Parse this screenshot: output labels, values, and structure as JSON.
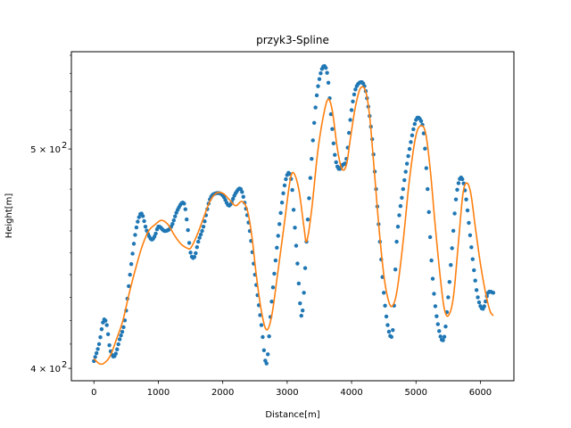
{
  "chart_data": {
    "type": "scatter",
    "title": "przyk3-Spline",
    "xlabel": "Distance[m]",
    "ylabel": "Height[m]",
    "xlim": [
      -350,
      6520
    ],
    "ylim": [
      395,
      552
    ],
    "yscale": "log",
    "grid": false,
    "legend": "none",
    "x_ticks": [
      0,
      1000,
      2000,
      3000,
      4000,
      5000,
      6000
    ],
    "x_tick_labels": [
      "0",
      "1000",
      "2000",
      "3000",
      "4000",
      "5000",
      "6000"
    ],
    "y_major_ticks": [
      400,
      500
    ],
    "y_major_tick_labels": [
      "4 × 10",
      "5 × 10"
    ],
    "y_tick_exponent": "2",
    "y_minor_ticks": [
      410,
      420,
      430,
      440,
      450,
      460,
      470,
      480,
      490,
      510,
      520,
      530,
      540,
      550
    ],
    "series": [
      {
        "kind": "points",
        "color": "#1f77b4",
        "anchors": {
          "x": [
            0,
            80,
            150,
            200,
            250,
            320,
            400,
            480,
            560,
            650,
            720,
            760,
            800,
            850,
            900,
            950,
            1000,
            1100,
            1200,
            1300,
            1400,
            1450,
            1500,
            1560,
            1620,
            1700,
            1800,
            1900,
            2000,
            2100,
            2200,
            2280,
            2350,
            2420,
            2500,
            2600,
            2680,
            2750,
            2850,
            2950,
            3020,
            3070,
            3100,
            3160,
            3220,
            3260,
            3300,
            3380,
            3450,
            3520,
            3580,
            3630,
            3680,
            3740,
            3800,
            3860,
            3920,
            3980,
            4050,
            4130,
            4200,
            4260,
            4320,
            4380,
            4440,
            4500,
            4560,
            4620,
            4650,
            4700,
            4800,
            4900,
            5000,
            5070,
            5120,
            5180,
            5250,
            5330,
            5430,
            5500,
            5560,
            5620,
            5680,
            5730,
            5780,
            5840,
            5900,
            5960,
            6040,
            6120,
            6200
          ],
          "y": [
            403,
            410,
            420,
            418,
            408,
            405,
            412,
            420,
            440,
            460,
            468,
            467,
            462,
            458,
            456,
            458,
            462,
            460,
            462,
            470,
            473,
            463,
            450,
            448,
            455,
            462,
            475,
            478,
            477,
            472,
            478,
            480,
            472,
            460,
            440,
            418,
            402,
            425,
            455,
            480,
            488,
            483,
            470,
            445,
            422,
            432,
            455,
            495,
            525,
            540,
            544,
            538,
            518,
            497,
            490,
            492,
            495,
            515,
            530,
            535,
            533,
            522,
            505,
            480,
            455,
            432,
            418,
            413,
            420,
            455,
            480,
            500,
            515,
            515,
            508,
            480,
            442,
            420,
            412,
            430,
            452,
            475,
            485,
            484,
            475,
            458,
            442,
            430,
            425,
            432,
            432
          ]
        }
      },
      {
        "kind": "spline",
        "color": "#ff7f0e",
        "anchors": {
          "x": [
            0,
            80,
            150,
            250,
            350,
            450,
            550,
            650,
            750,
            850,
            950,
            1050,
            1150,
            1250,
            1350,
            1450,
            1500,
            1600,
            1700,
            1800,
            1900,
            2000,
            2100,
            2200,
            2300,
            2380,
            2450,
            2520,
            2600,
            2680,
            2760,
            2850,
            2950,
            3050,
            3100,
            3180,
            3260,
            3300,
            3380,
            3480,
            3580,
            3640,
            3700,
            3780,
            3850,
            3920,
            3980,
            4060,
            4140,
            4220,
            4280,
            4350,
            4430,
            4500,
            4560,
            4620,
            4700,
            4800,
            4900,
            5000,
            5080,
            5150,
            5220,
            5300,
            5380,
            5440,
            5500,
            5580,
            5660,
            5730,
            5790,
            5850,
            5920,
            6000,
            6080,
            6150,
            6200
          ],
          "y": [
            404,
            402,
            402,
            405,
            412,
            420,
            432,
            443,
            453,
            460,
            463,
            465,
            463,
            458,
            454,
            452,
            452,
            458,
            466,
            474,
            478,
            478,
            475,
            472,
            474,
            470,
            458,
            440,
            424,
            416,
            422,
            440,
            462,
            485,
            488,
            480,
            462,
            455,
            470,
            500,
            520,
            526,
            520,
            500,
            490,
            492,
            505,
            522,
            532,
            530,
            517,
            490,
            460,
            440,
            430,
            426,
            432,
            455,
            485,
            507,
            512,
            508,
            490,
            462,
            438,
            425,
            422,
            430,
            455,
            478,
            483,
            478,
            462,
            445,
            432,
            424,
            422
          ]
        }
      }
    ]
  }
}
